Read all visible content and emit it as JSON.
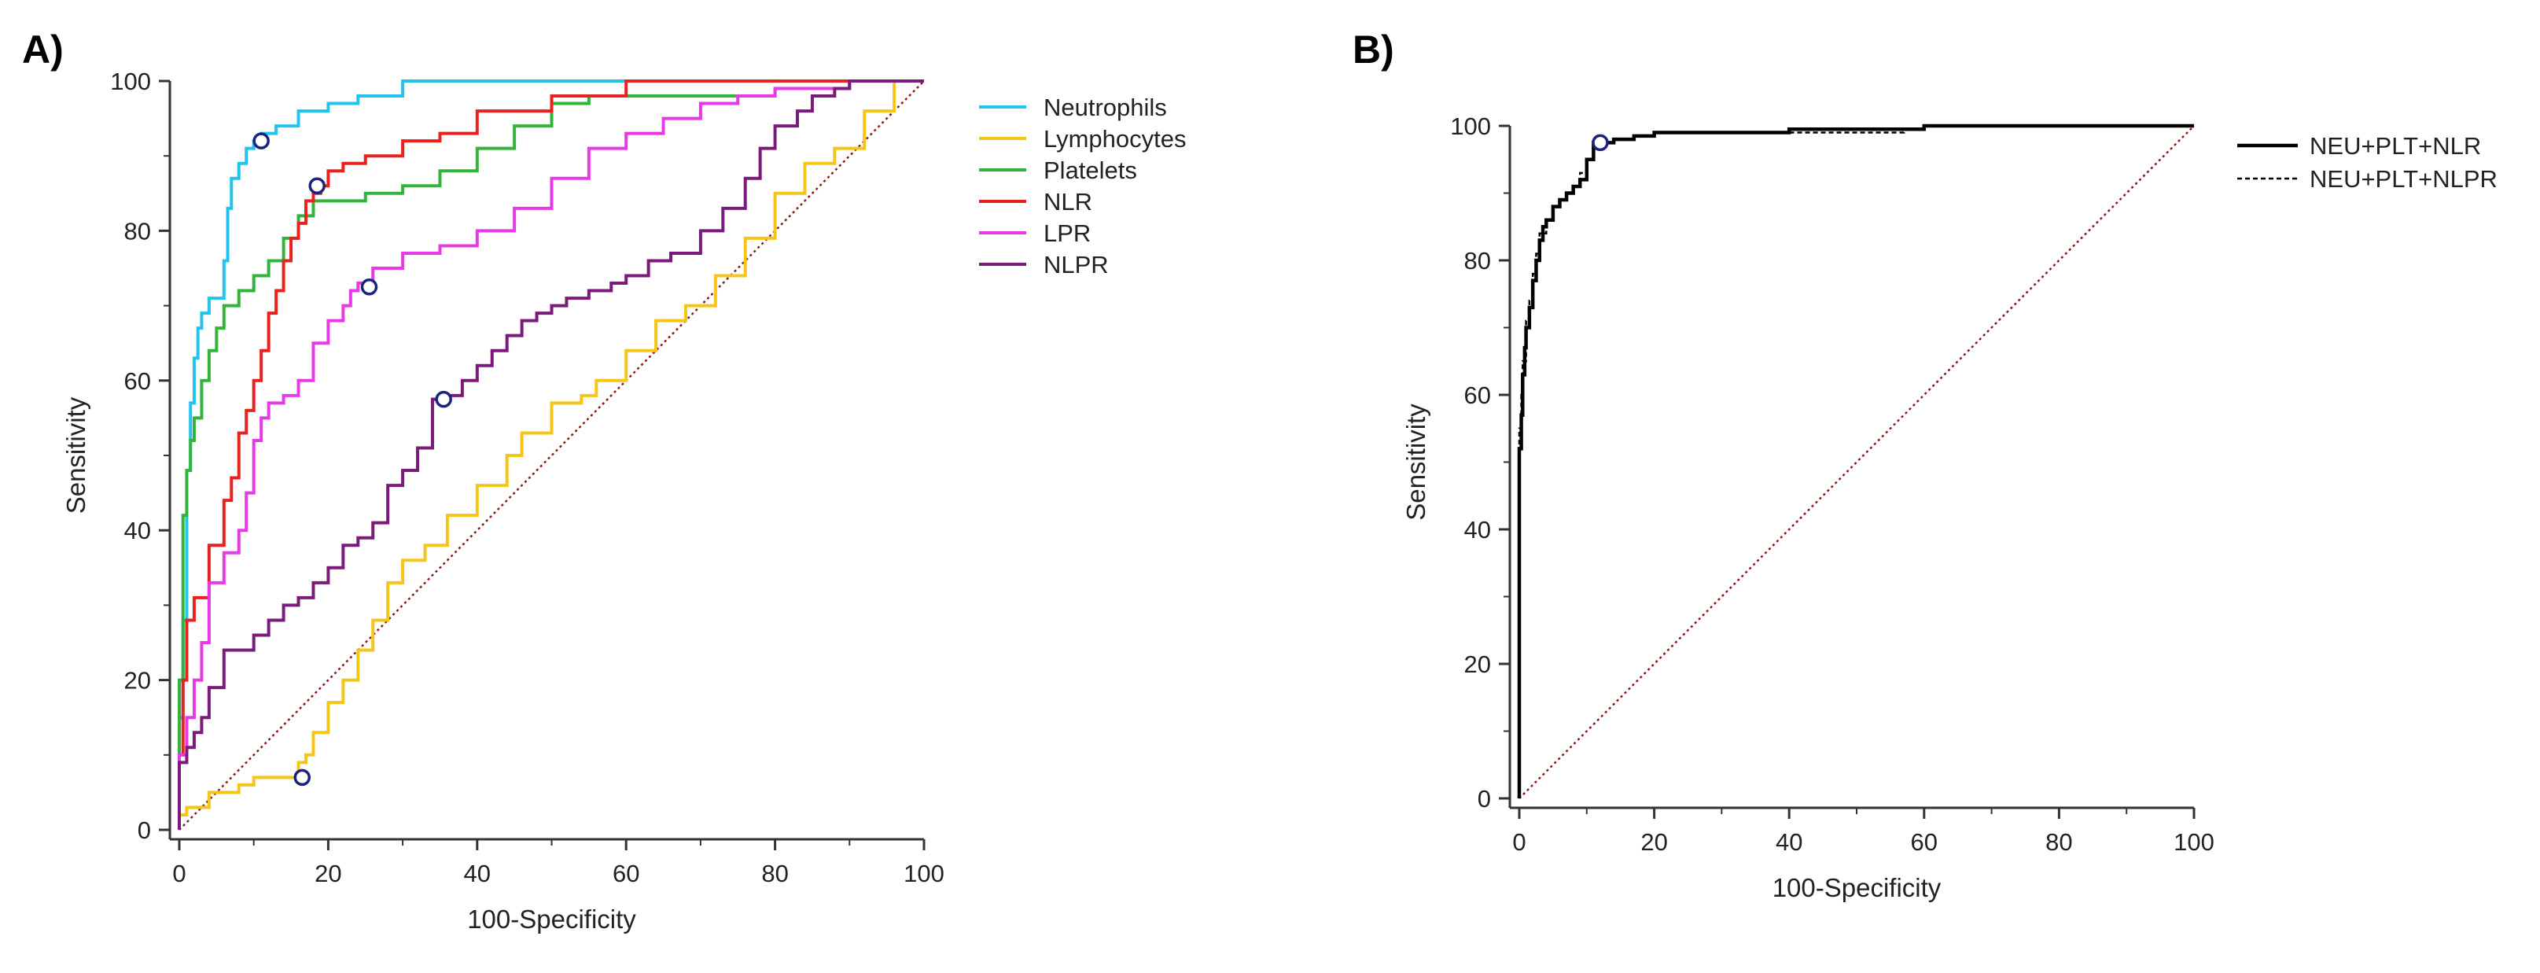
{
  "chart_data": [
    {
      "panel_label": "A)",
      "type": "line",
      "xlabel": "100-Specificity",
      "ylabel": "Sensitivity",
      "xlim": [
        0,
        100
      ],
      "ylim": [
        0,
        100
      ],
      "xticks": [
        0,
        20,
        40,
        60,
        80,
        100
      ],
      "yticks": [
        0,
        20,
        40,
        60,
        80,
        100
      ],
      "grid": false,
      "legend_position": "right",
      "reference_line": {
        "x": [
          0,
          100
        ],
        "y": [
          0,
          100
        ],
        "color": "#8b1a1a",
        "style": "dotted"
      },
      "series": [
        {
          "name": "Neutrophils",
          "color": "#22c4ee",
          "x": [
            0,
            0.5,
            1,
            1.5,
            2,
            2.5,
            3,
            4,
            6,
            6.5,
            7,
            8,
            9,
            10,
            11,
            13,
            16,
            20,
            24,
            30,
            40,
            60,
            80,
            100
          ],
          "y": [
            0,
            15,
            28,
            48,
            57,
            63,
            67,
            69,
            71,
            76,
            83,
            87,
            89,
            91,
            92,
            93,
            94,
            96,
            97,
            98,
            100,
            100,
            100,
            100
          ],
          "cutoff": [
            11,
            92
          ]
        },
        {
          "name": "Lymphocytes",
          "color": "#f5c518",
          "x": [
            0,
            1,
            4,
            8,
            10,
            14,
            16,
            17,
            18,
            20,
            22,
            24,
            26,
            28,
            30,
            33,
            36,
            40,
            44,
            46,
            50,
            54,
            56,
            60,
            64,
            68,
            72,
            76,
            80,
            84,
            88,
            92,
            96,
            100
          ],
          "y": [
            0,
            2,
            3,
            5,
            6,
            7,
            7,
            9,
            10,
            13,
            17,
            20,
            24,
            28,
            33,
            36,
            38,
            42,
            46,
            50,
            53,
            57,
            58,
            60,
            64,
            68,
            70,
            74,
            79,
            85,
            89,
            91,
            96,
            100
          ],
          "cutoff": [
            16.5,
            7
          ]
        },
        {
          "name": "Platelets",
          "color": "#32b43a",
          "x": [
            0,
            0.5,
            1,
            1.5,
            2,
            3,
            4,
            5,
            6,
            8,
            10,
            12,
            14,
            16,
            18,
            20,
            25,
            30,
            35,
            40,
            45,
            50,
            55,
            60,
            70,
            80,
            90,
            100
          ],
          "y": [
            0,
            20,
            42,
            48,
            52,
            55,
            60,
            64,
            67,
            70,
            72,
            74,
            76,
            79,
            82,
            84,
            84,
            85,
            86,
            88,
            91,
            94,
            97,
            98,
            98,
            98,
            99,
            100
          ]
        },
        {
          "name": "NLR",
          "color": "#e8221e",
          "x": [
            0,
            0.5,
            1,
            2,
            4,
            6,
            7,
            8,
            9,
            10,
            11,
            12,
            13,
            14,
            15,
            16,
            17,
            18,
            19,
            20,
            22,
            25,
            30,
            35,
            40,
            50,
            60,
            75,
            80,
            90,
            100
          ],
          "y": [
            0,
            10,
            20,
            28,
            31,
            38,
            44,
            47,
            53,
            56,
            60,
            64,
            69,
            72,
            76,
            79,
            81,
            84,
            85,
            86,
            88,
            89,
            90,
            92,
            93,
            96,
            98,
            100,
            100,
            100,
            100
          ],
          "cutoff": [
            18.5,
            86
          ]
        },
        {
          "name": "LPR",
          "color": "#e839e6",
          "x": [
            0,
            1,
            2,
            3,
            4,
            6,
            8,
            9,
            10,
            11,
            12,
            14,
            16,
            18,
            20,
            22,
            23,
            24,
            26,
            30,
            35,
            40,
            45,
            50,
            55,
            60,
            65,
            70,
            75,
            80,
            90,
            100
          ],
          "y": [
            0,
            10,
            15,
            20,
            25,
            33,
            37,
            40,
            45,
            52,
            55,
            57,
            58,
            60,
            65,
            68,
            70,
            72,
            73,
            75,
            77,
            78,
            80,
            83,
            87,
            91,
            93,
            95,
            97,
            98,
            99,
            100
          ],
          "cutoff": [
            25.5,
            72.5
          ]
        },
        {
          "name": "NLPR",
          "color": "#7a1a7a",
          "x": [
            0,
            1,
            2,
            3,
            4,
            6,
            8,
            10,
            12,
            14,
            16,
            18,
            20,
            22,
            24,
            26,
            28,
            30,
            32,
            34,
            35.5,
            38,
            40,
            42,
            44,
            46,
            48,
            50,
            52,
            55,
            58,
            60,
            63,
            66,
            70,
            73,
            76,
            78,
            80,
            83,
            85,
            88,
            90,
            95,
            100
          ],
          "y": [
            0,
            9,
            11,
            13,
            15,
            19,
            24,
            24,
            26,
            28,
            30,
            31,
            33,
            35,
            38,
            39,
            41,
            46,
            48,
            51,
            57.5,
            58,
            60,
            62,
            64,
            66,
            68,
            69,
            70,
            71,
            72,
            73,
            74,
            76,
            77,
            80,
            83,
            87,
            91,
            94,
            96,
            98,
            99,
            100,
            100
          ],
          "cutoff": [
            35.5,
            57.5
          ]
        }
      ]
    },
    {
      "panel_label": "B)",
      "type": "line",
      "xlabel": "100-Specificity",
      "ylabel": "Sensitivity",
      "xlim": [
        0,
        100
      ],
      "ylim": [
        0,
        100
      ],
      "xticks": [
        0,
        20,
        40,
        60,
        80,
        100
      ],
      "yticks": [
        0,
        20,
        40,
        60,
        80,
        100
      ],
      "grid": false,
      "legend_position": "right",
      "reference_line": {
        "x": [
          0,
          100
        ],
        "y": [
          0,
          100
        ],
        "color": "#8b1a1a",
        "style": "dotted"
      },
      "series": [
        {
          "name": "NEU+PLT+NLR",
          "color": "#000000",
          "style": "solid",
          "x": [
            0,
            0,
            0.3,
            0.5,
            0.8,
            1,
            1.5,
            2,
            2.5,
            3,
            3.5,
            4,
            5,
            6,
            7,
            8,
            9,
            10,
            11,
            12,
            14,
            17,
            20,
            22,
            30,
            40,
            57,
            60,
            100
          ],
          "y": [
            0,
            49,
            52,
            57,
            63,
            67,
            70,
            73,
            77,
            80,
            83,
            85,
            86,
            88,
            89,
            90,
            91,
            92,
            95,
            97.5,
            97.5,
            98,
            98.5,
            99,
            99,
            99,
            99.5,
            99.5,
            100
          ],
          "cutoff": [
            12,
            97.5
          ]
        },
        {
          "name": "NEU+PLT+NLPR",
          "color": "#000000",
          "style": "dashed",
          "x": [
            0,
            0,
            0.3,
            0.5,
            1,
            1.5,
            2,
            2.5,
            3,
            4,
            5,
            6,
            7,
            8,
            9,
            10,
            11,
            12,
            14,
            17,
            20,
            22,
            30,
            40,
            57,
            60,
            100
          ],
          "y": [
            0,
            52,
            55,
            60,
            65,
            71,
            74,
            78,
            81,
            84,
            86,
            88,
            89,
            90,
            91,
            93,
            95,
            97,
            97.5,
            98,
            98.5,
            99,
            99,
            99,
            99,
            99.5,
            100
          ]
        }
      ]
    }
  ]
}
